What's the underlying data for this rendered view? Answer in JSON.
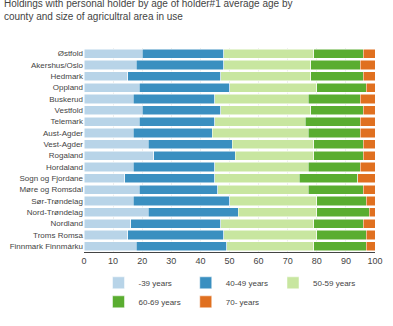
{
  "chart_data": {
    "type": "bar",
    "orientation": "horizontal",
    "stacked": true,
    "title": "Holdings with personal holder by age of holder#1 average age by\ncounty and size of agricultral area in use",
    "categories": [
      "Østfold",
      "Akershus/Oslo",
      "Hedmark",
      "Oppland",
      "Buskerud",
      "Vestfold",
      "Telemark",
      "Aust-Agder",
      "Vest-Agder",
      "Rogaland",
      "Hordaland",
      "Sogn og Fjordane",
      "Møre og Romsdal",
      "Sør-Trøndelag",
      "Nord-Trøndelag",
      "Nordland",
      "Troms Romsa",
      "Finnmark Finnmárku"
    ],
    "series": [
      {
        "name": "-39 years",
        "color": "#b8d4e8",
        "values": [
          20,
          18,
          15,
          19,
          17,
          20,
          19,
          17,
          22,
          24,
          17,
          14,
          19,
          17,
          22,
          16,
          15,
          18
        ]
      },
      {
        "name": "40-49 years",
        "color": "#3a8fc0",
        "values": [
          28,
          30,
          32,
          31,
          28,
          27,
          26,
          27,
          29,
          28,
          28,
          31,
          27,
          33,
          31,
          31,
          33,
          31
        ]
      },
      {
        "name": "50-59 years",
        "color": "#c8e6a0",
        "values": [
          31,
          30,
          31,
          30,
          32,
          31,
          31,
          33,
          28,
          27,
          32,
          29,
          31,
          30,
          27,
          32,
          32,
          30
        ]
      },
      {
        "name": "60-69 years",
        "color": "#5aad30",
        "values": [
          17,
          17,
          18,
          17,
          18,
          18,
          19,
          18,
          17,
          17,
          18,
          20,
          19,
          17,
          18,
          17,
          17,
          18
        ]
      },
      {
        "name": "70- years",
        "color": "#e07020",
        "values": [
          4,
          5,
          4,
          3,
          5,
          4,
          5,
          5,
          4,
          4,
          5,
          6,
          4,
          3,
          2,
          4,
          3,
          3
        ]
      }
    ],
    "xlim": [
      0,
      100
    ],
    "xticks": [
      0,
      10,
      20,
      30,
      40,
      50,
      60,
      70,
      80,
      90,
      100
    ],
    "grid": true,
    "legend": "bottom"
  }
}
